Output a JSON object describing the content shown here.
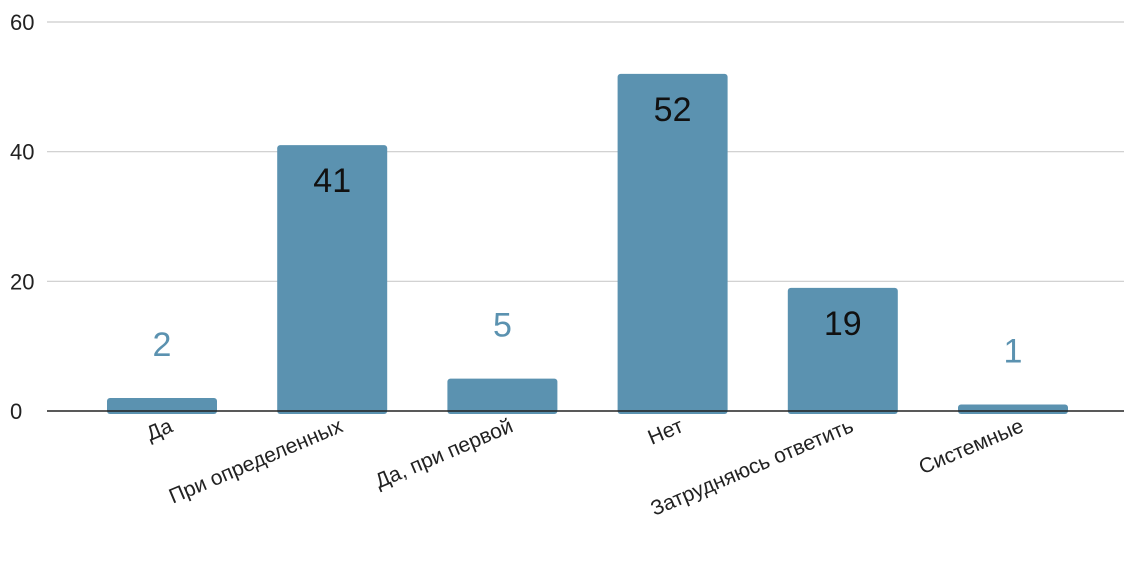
{
  "chart_data": {
    "type": "bar",
    "categories": [
      "Да",
      "При определенных",
      "Да, при первой",
      "Нет",
      "Затрудняюсь ответить",
      "Системные"
    ],
    "values": [
      2,
      41,
      5,
      52,
      19,
      1
    ],
    "ylim": [
      0,
      60
    ],
    "yticks": [
      0,
      20,
      40,
      60
    ],
    "grid": true,
    "legend": "none",
    "colors": {
      "bar": "#5b92b0",
      "grid": "#cccccc",
      "axis": "#222222",
      "label_inside": "#111111",
      "label_outside": "#5b92b0"
    }
  }
}
